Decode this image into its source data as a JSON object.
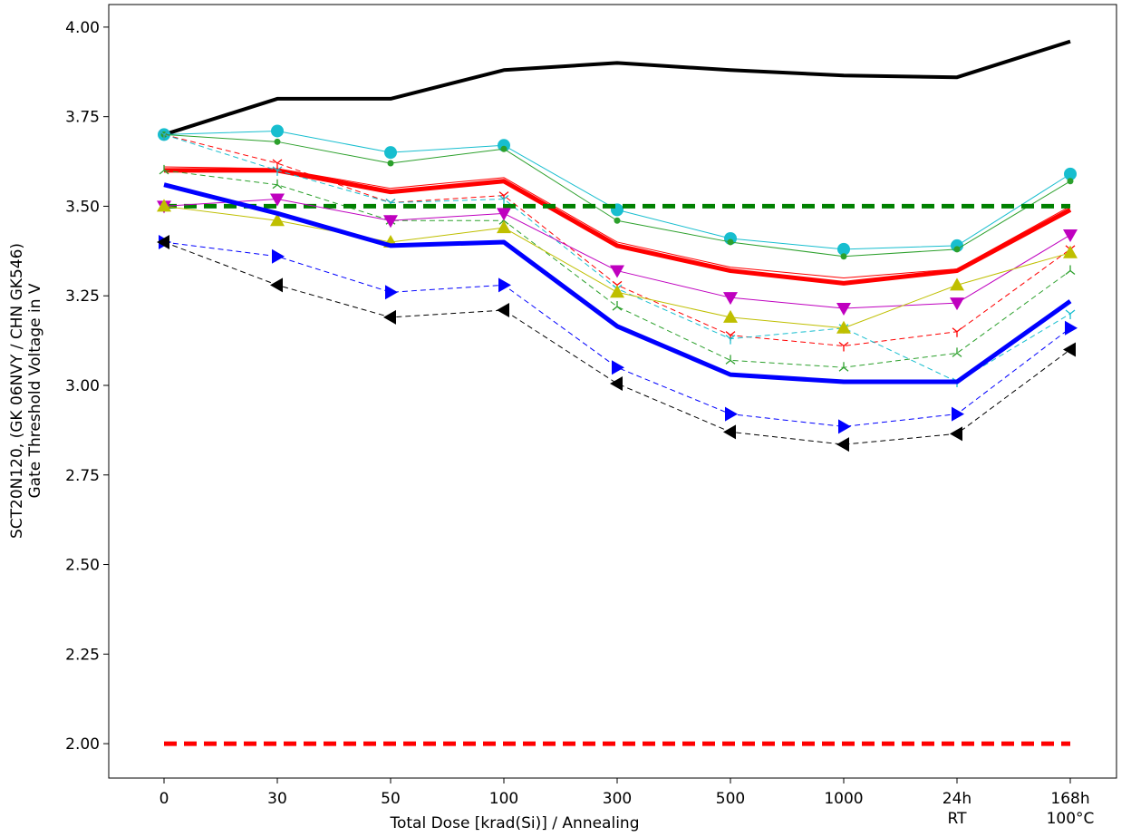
{
  "chart_data": {
    "type": "line",
    "y_label": [
      "SCT20N120, (GK 06NVY / CHN GK546)",
      "Gate Threshold Voltage in V"
    ],
    "x_label": "Total Dose [krad(Si)] / Annealing",
    "categories": [
      "0",
      "30",
      "50",
      "100",
      "300",
      "500",
      "1000",
      "24h\nRT",
      "168h\n100°C"
    ],
    "ylim": [
      1.904,
      4.063
    ],
    "yticks": [
      {
        "value": 2,
        "label": "2.00"
      },
      {
        "value": 2.25,
        "label": "2.25"
      },
      {
        "value": 2.5,
        "label": "2.50"
      },
      {
        "value": 2.75,
        "label": "2.75"
      },
      {
        "value": 3,
        "label": "3.00"
      },
      {
        "value": 3.25,
        "label": "3.25"
      },
      {
        "value": 3.5,
        "label": "3.50"
      },
      {
        "value": 3.75,
        "label": "3.75"
      },
      {
        "value": 4,
        "label": "4.00"
      }
    ],
    "series": [
      {
        "color": "#000000",
        "width": 4,
        "dash": "none",
        "marker": "none",
        "values": [
          3.7,
          3.8,
          3.8,
          3.88,
          3.9,
          3.88,
          3.865,
          3.86,
          3.96
        ]
      },
      {
        "color": "#17becf",
        "width": 1,
        "dash": "none",
        "marker": "circle",
        "values": [
          3.7,
          3.71,
          3.65,
          3.67,
          3.49,
          3.41,
          3.38,
          3.39,
          3.59
        ]
      },
      {
        "color": "#2ca02c",
        "width": 1,
        "dash": "none",
        "marker": "dot",
        "values": [
          3.7,
          3.68,
          3.62,
          3.66,
          3.46,
          3.4,
          3.36,
          3.38,
          3.57
        ]
      },
      {
        "color": "#ff0000",
        "width": 1,
        "dash": "none",
        "marker": "none",
        "values": [
          3.61,
          3.605,
          3.55,
          3.58,
          3.4,
          3.33,
          3.3,
          3.325,
          3.5
        ]
      },
      {
        "color": "#ff0000",
        "width": 5,
        "dash": "none",
        "marker": "none",
        "values": [
          3.6,
          3.6,
          3.54,
          3.57,
          3.39,
          3.32,
          3.285,
          3.32,
          3.49
        ]
      },
      {
        "color": "#ff0000",
        "width": 1,
        "dash": "6,4",
        "marker": "tri",
        "values": [
          3.7,
          3.62,
          3.51,
          3.53,
          3.28,
          3.14,
          3.11,
          3.15,
          3.38
        ]
      },
      {
        "color": "#17becf",
        "width": 1,
        "dash": "6,4",
        "marker": "tri",
        "values": [
          3.7,
          3.6,
          3.51,
          3.52,
          3.27,
          3.13,
          3.16,
          3.01,
          3.2
        ]
      },
      {
        "color": "#2ca02c",
        "width": 1,
        "dash": "6,4",
        "marker": "tri_down",
        "values": [
          3.6,
          3.56,
          3.46,
          3.46,
          3.22,
          3.07,
          3.05,
          3.09,
          3.32
        ]
      },
      {
        "color": "#008000",
        "width": 5,
        "dash": "14,8",
        "marker": "none",
        "values": [
          3.5,
          3.5,
          3.5,
          3.5,
          3.5,
          3.5,
          3.5,
          3.5,
          3.5
        ]
      },
      {
        "color": "#bf00bf",
        "width": 1,
        "dash": "none",
        "marker": "triangle_down",
        "values": [
          3.5,
          3.52,
          3.46,
          3.48,
          3.32,
          3.245,
          3.215,
          3.23,
          3.42
        ]
      },
      {
        "color": "#bfbf00",
        "width": 1,
        "dash": "none",
        "marker": "triangle_up",
        "values": [
          3.5,
          3.46,
          3.4,
          3.44,
          3.26,
          3.19,
          3.16,
          3.28,
          3.37
        ]
      },
      {
        "color": "#0000ff",
        "width": 5,
        "dash": "none",
        "marker": "none",
        "values": [
          3.56,
          3.48,
          3.39,
          3.4,
          3.165,
          3.03,
          3.01,
          3.01,
          3.235
        ]
      },
      {
        "color": "#0000ff",
        "width": 1,
        "dash": "6,4",
        "marker": "triangle_right",
        "values": [
          3.4,
          3.36,
          3.26,
          3.28,
          3.05,
          2.92,
          2.885,
          2.92,
          3.16
        ]
      },
      {
        "color": "#000000",
        "width": 1,
        "dash": "6,4",
        "marker": "triangle_left",
        "values": [
          3.4,
          3.28,
          3.19,
          3.21,
          3.005,
          2.87,
          2.835,
          2.865,
          3.1
        ]
      },
      {
        "color": "#ff0000",
        "width": 5,
        "dash": "14,8",
        "marker": "none",
        "values": [
          2,
          2,
          2,
          2,
          2,
          2,
          2,
          2,
          2
        ]
      }
    ]
  }
}
